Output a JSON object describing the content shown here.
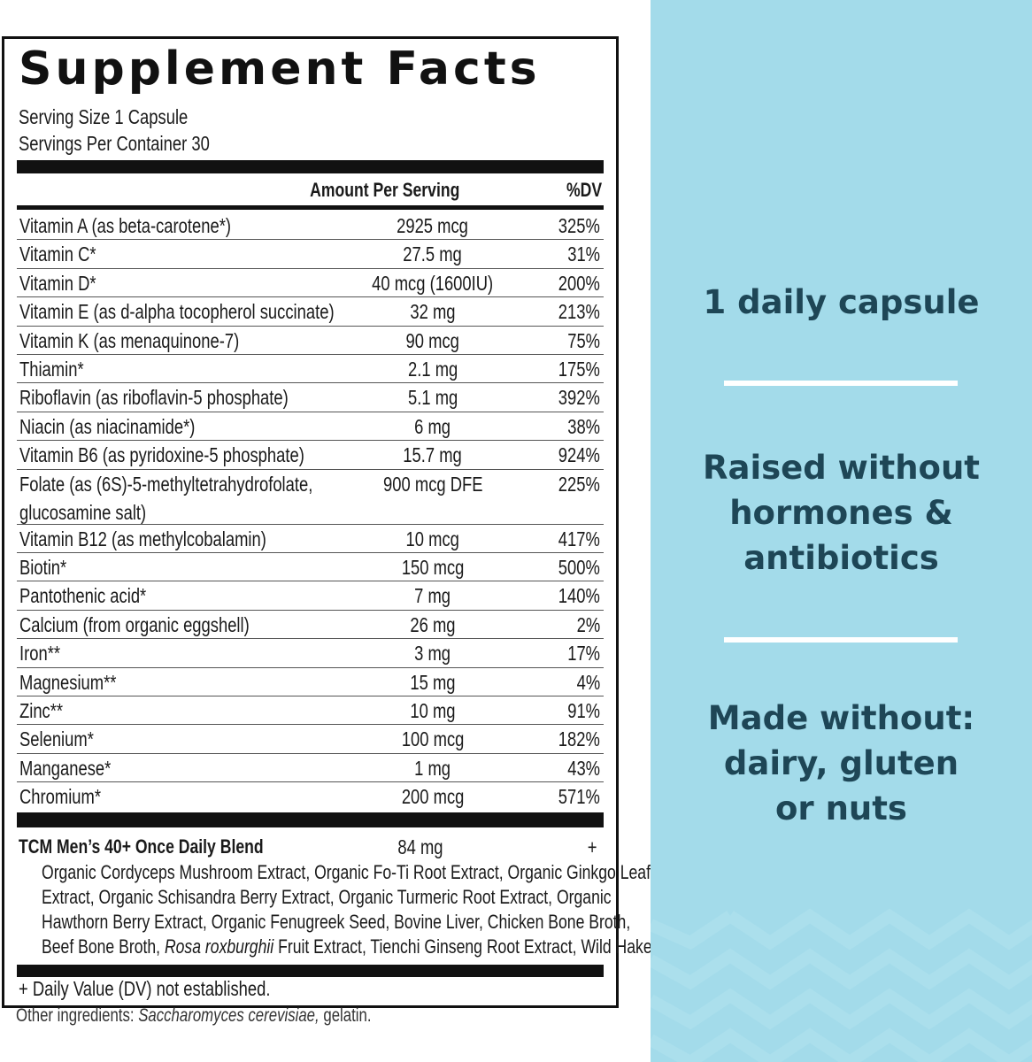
{
  "label": {
    "title": "Supplement Facts",
    "serving_size": "Serving Size 1 Capsule",
    "servings_per_container": "Servings Per Container 30",
    "header": {
      "amount": "Amount Per Serving",
      "dv": "%DV"
    },
    "rows": [
      {
        "name": "Vitamin A (as beta-carotene*)",
        "amount": "2925 mcg",
        "dv": "325%"
      },
      {
        "name": "Vitamin C*",
        "amount": "27.5 mg",
        "dv": "31%"
      },
      {
        "name": "Vitamin D*",
        "amount": "40 mcg (1600IU)",
        "dv": "200%"
      },
      {
        "name": "Vitamin E (as d-alpha tocopherol succinate)",
        "amount": "32 mg",
        "dv": "213%"
      },
      {
        "name": "Vitamin K (as menaquinone-7)",
        "amount": "90 mcg",
        "dv": "75%"
      },
      {
        "name": "Thiamin*",
        "amount": "2.1 mg",
        "dv": "175%"
      },
      {
        "name": "Riboflavin (as riboflavin-5 phosphate)",
        "amount": "5.1 mg",
        "dv": "392%"
      },
      {
        "name": "Niacin (as niacinamide*)",
        "amount": "6 mg",
        "dv": "38%"
      },
      {
        "name": "Vitamin B6 (as pyridoxine-5 phosphate)",
        "amount": "15.7 mg",
        "dv": "924%"
      },
      {
        "name": "Folate (as (6S)-5-methyltetrahydrofolate,",
        "name2": "glucosamine salt)",
        "amount": "900 mcg DFE",
        "dv": "225%"
      },
      {
        "name": "Vitamin B12 (as methylcobalamin)",
        "amount": "10 mcg",
        "dv": "417%"
      },
      {
        "name": "Biotin*",
        "amount": "150 mcg",
        "dv": "500%"
      },
      {
        "name": "Pantothenic acid*",
        "amount": "7 mg",
        "dv": "140%"
      },
      {
        "name": "Calcium (from organic eggshell)",
        "amount": "26 mg",
        "dv": "2%"
      },
      {
        "name": "Iron**",
        "amount": "3 mg",
        "dv": "17%"
      },
      {
        "name": "Magnesium**",
        "amount": "15 mg",
        "dv": "4%"
      },
      {
        "name": "Zinc**",
        "amount": "10 mg",
        "dv": "91%"
      },
      {
        "name": "Selenium*",
        "amount": "100 mcg",
        "dv": "182%"
      },
      {
        "name": "Manganese*",
        "amount": "1 mg",
        "dv": "43%"
      },
      {
        "name": "Chromium*",
        "amount": "200 mcg",
        "dv": "571%"
      }
    ],
    "blend": {
      "name": "TCM Men’s 40+ Once Daily Blend",
      "amount": "84 mg",
      "dv": "+",
      "ingredients_lines": [
        "Organic Cordyceps Mushroom Extract, Organic Fo-Ti Root Extract, Organic Ginkgo Leaf",
        "Extract, Organic Schisandra Berry Extract, Organic Turmeric Root Extract, Organic",
        "Hawthorn Berry Extract, Organic Fenugreek Seed, Bovine Liver, Chicken Bone Broth,"
      ],
      "last_line_pre": "Beef Bone Broth, ",
      "last_line_italic": "Rosa roxburghii",
      "last_line_post": " Fruit Extract, Tienchi Ginseng Root Extract, Wild Hake Roe"
    },
    "dv_note": "+ Daily Value (DV) not established."
  },
  "other_ingredients": {
    "prefix": "Other ingredients: ",
    "italic": "Saccharomyces cerevisiae,",
    "suffix": " gelatin."
  },
  "panel": {
    "background": "#a3dbea",
    "text_color": "#1e4656",
    "claim1": "1 daily capsule",
    "claim2_lines": [
      "Raised without",
      "hormones &",
      "antibiotics"
    ],
    "claim3_lines": [
      "Made without:",
      "dairy, gluten",
      "or nuts"
    ]
  }
}
